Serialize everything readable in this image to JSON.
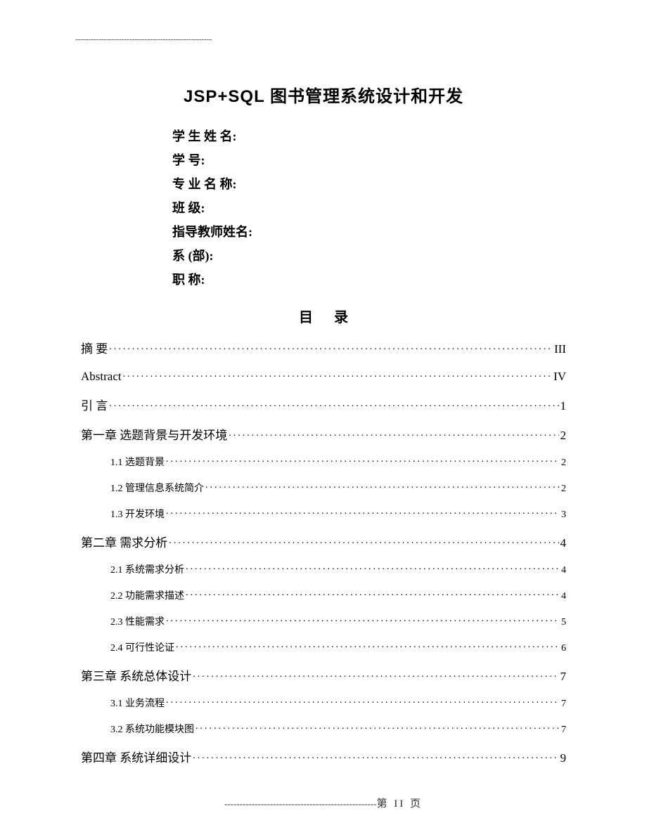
{
  "topDashes": "-----------------------------------------------------",
  "title": "JSP+SQL 图书管理系统设计和开发",
  "infoFields": [
    "学 生   姓 名:",
    "学           号:",
    "专 业   名 称:",
    "班           级:",
    "指导教师姓名:",
    "系        (部):",
    "职           称:"
  ],
  "tocTitle": "目录",
  "toc": [
    {
      "level": 1,
      "label": "摘  要",
      "page": "III"
    },
    {
      "level": 1,
      "label": "Abstract",
      "page": "IV"
    },
    {
      "level": 1,
      "label": "引  言",
      "page": "1"
    },
    {
      "level": 1,
      "label": "第一章   选题背景与开发环境",
      "page": "2"
    },
    {
      "level": 2,
      "label": "1.1 选题背景",
      "page": "2"
    },
    {
      "level": 2,
      "label": "1.2 管理信息系统简介",
      "page": "2"
    },
    {
      "level": 2,
      "label": "1.3 开发环境",
      "page": "3"
    },
    {
      "level": 1,
      "label": "第二章  需求分析",
      "page": "4"
    },
    {
      "level": 2,
      "label": "2.1 系统需求分析",
      "page": "4"
    },
    {
      "level": 2,
      "label": "2.2 功能需求描述",
      "page": "4"
    },
    {
      "level": 2,
      "label": "2.3 性能需求",
      "page": "5"
    },
    {
      "level": 2,
      "label": "2.4 可行性论证",
      "page": "6"
    },
    {
      "level": 1,
      "label": "第三章  系统总体设计",
      "page": "7"
    },
    {
      "level": 2,
      "label": "3.1 业务流程",
      "page": "7"
    },
    {
      "level": 2,
      "label": "3.2 系统功能模块图",
      "page": "7"
    },
    {
      "level": 1,
      "label": "第四章  系统详细设计",
      "page": "9"
    }
  ],
  "footer": {
    "dashes": "--------------------------------------------------",
    "text": "第 II 页"
  }
}
